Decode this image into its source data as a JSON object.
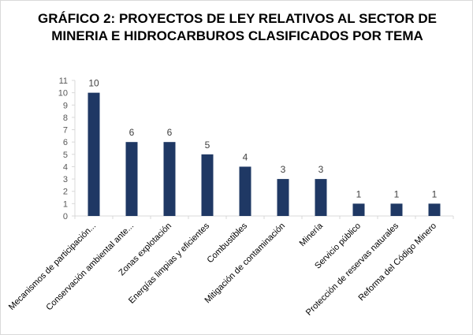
{
  "chart_data": {
    "type": "bar",
    "title": "GRÁFICO 2: PROYECTOS DE LEY RELATIVOS AL SECTOR DE MINERIA E HIDROCARBUROS CLASIFICADOS POR TEMA",
    "categories": [
      "Mecanismos de participación...",
      "Conservación ambiental ante...",
      "Zonas explotación",
      "Energías limpias y eficientes",
      "Combustibles",
      "Mitigación de contaminación",
      "Minería",
      "Servicio público",
      "Protección de reservas naturales",
      "Reforma del Código Minero"
    ],
    "values": [
      10,
      6,
      6,
      5,
      4,
      3,
      3,
      1,
      1,
      1
    ],
    "ylim": [
      0,
      11
    ],
    "yticks": [
      0,
      1,
      2,
      3,
      4,
      5,
      6,
      7,
      8,
      9,
      10,
      11
    ],
    "grid": false,
    "legend": "none",
    "xlabel": "",
    "ylabel": "",
    "bar_color": "#1f3864",
    "axis_color": "#d9d9d9"
  }
}
